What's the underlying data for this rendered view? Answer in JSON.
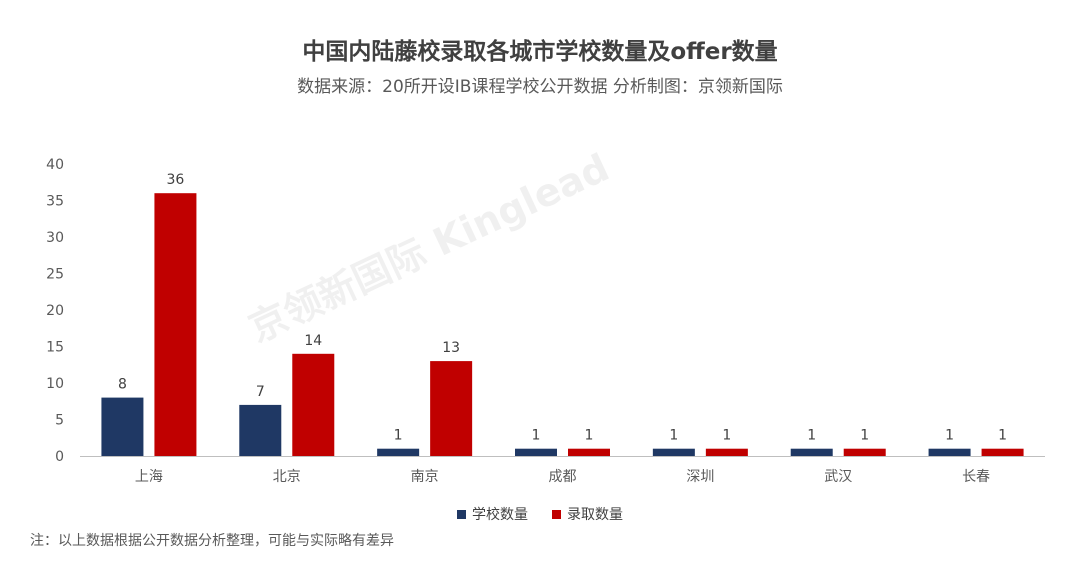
{
  "chart_data": {
    "type": "bar",
    "title": "中国内陆藤校录取各城市学校数量及offer数量",
    "subtitle": "数据来源：20所开设IB课程学校公开数据 分析制图：京领新国际",
    "categories": [
      "上海",
      "北京",
      "南京",
      "成都",
      "深圳",
      "武汉",
      "长春"
    ],
    "series": [
      {
        "name": "学校数量",
        "color": "#1f3864",
        "values": [
          8,
          7,
          1,
          1,
          1,
          1,
          1
        ]
      },
      {
        "name": "录取数量",
        "color": "#c00000",
        "values": [
          36,
          14,
          13,
          1,
          1,
          1,
          1
        ]
      }
    ],
    "ylim": [
      0,
      40
    ],
    "yticks": [
      0,
      5,
      10,
      15,
      20,
      25,
      30,
      35,
      40
    ],
    "grid": false,
    "legend": "bottom"
  },
  "watermark": "京领新国际 Kinglead",
  "footnote": "注：以上数据根据公开数据分析整理，可能与实际略有差异"
}
